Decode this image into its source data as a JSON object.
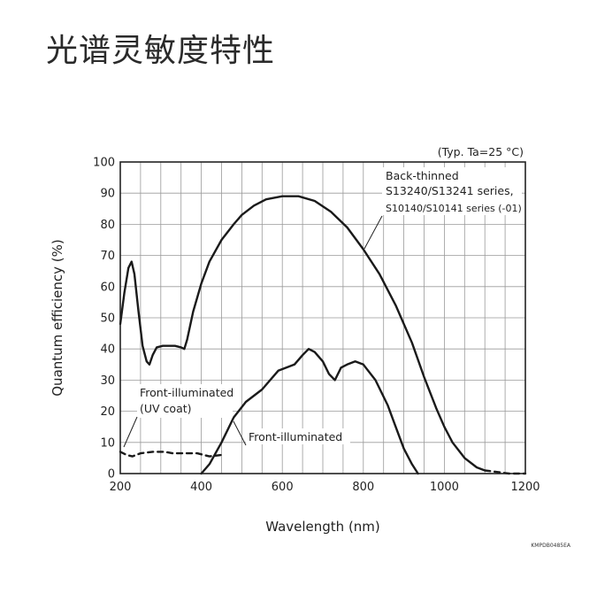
{
  "page": {
    "title": "光谱灵敏度特性",
    "code": "KMPDB0485EA"
  },
  "chart_data": {
    "type": "line",
    "title": "",
    "condition": "(Typ. Ta=25 °C)",
    "xlabel": "Wavelength (nm)",
    "ylabel": "Quantum efficiency (%)",
    "xlim": [
      200,
      1200
    ],
    "ylim": [
      0,
      100
    ],
    "xticks": [
      200,
      400,
      600,
      800,
      1000,
      1200
    ],
    "yticks": [
      0,
      10,
      20,
      30,
      40,
      50,
      60,
      70,
      80,
      90,
      100
    ],
    "grid": true,
    "series": [
      {
        "name": "Back-thinned S13240/S13241 series, S10140/S10141 series (-01)",
        "label_lines": [
          "Back-thinned",
          "S13240/S13241 series,",
          "S10140/S10141 series (-01)"
        ],
        "style": "solid",
        "points": [
          [
            200,
            48
          ],
          [
            210,
            58
          ],
          [
            220,
            66
          ],
          [
            228,
            68
          ],
          [
            235,
            64
          ],
          [
            245,
            52
          ],
          [
            255,
            41
          ],
          [
            265,
            36
          ],
          [
            272,
            35
          ],
          [
            280,
            38
          ],
          [
            290,
            40.5
          ],
          [
            305,
            41
          ],
          [
            320,
            41
          ],
          [
            335,
            41
          ],
          [
            350,
            40.5
          ],
          [
            358,
            40
          ],
          [
            365,
            43
          ],
          [
            380,
            52
          ],
          [
            400,
            61
          ],
          [
            420,
            68
          ],
          [
            450,
            75
          ],
          [
            480,
            80
          ],
          [
            500,
            83
          ],
          [
            530,
            86
          ],
          [
            560,
            88
          ],
          [
            600,
            89
          ],
          [
            640,
            89
          ],
          [
            680,
            87.5
          ],
          [
            720,
            84
          ],
          [
            760,
            79
          ],
          [
            800,
            72
          ],
          [
            840,
            64
          ],
          [
            880,
            54
          ],
          [
            920,
            42
          ],
          [
            950,
            31
          ],
          [
            980,
            21
          ],
          [
            1000,
            15
          ],
          [
            1020,
            10
          ],
          [
            1050,
            5
          ],
          [
            1080,
            2
          ],
          [
            1100,
            1
          ]
        ]
      },
      {
        "name": "Front-illuminated (UV coat)",
        "label_lines": [
          "Front-illuminated",
          "(UV coat)"
        ],
        "style": "dashed",
        "points": [
          [
            200,
            7
          ],
          [
            215,
            6
          ],
          [
            230,
            5.5
          ],
          [
            250,
            6.5
          ],
          [
            280,
            7
          ],
          [
            310,
            7
          ],
          [
            330,
            6.5
          ],
          [
            360,
            6.5
          ],
          [
            390,
            6.5
          ],
          [
            420,
            5.5
          ],
          [
            450,
            6
          ]
        ]
      },
      {
        "name": "Front-illuminated",
        "label_lines": [
          "Front-illuminated"
        ],
        "style": "solid",
        "points": [
          [
            400,
            0
          ],
          [
            420,
            3
          ],
          [
            450,
            10
          ],
          [
            480,
            18
          ],
          [
            510,
            23
          ],
          [
            550,
            27
          ],
          [
            590,
            33
          ],
          [
            610,
            34
          ],
          [
            630,
            35
          ],
          [
            650,
            38
          ],
          [
            665,
            40
          ],
          [
            680,
            39
          ],
          [
            700,
            36
          ],
          [
            715,
            32
          ],
          [
            730,
            30
          ],
          [
            745,
            34
          ],
          [
            760,
            35
          ],
          [
            780,
            36
          ],
          [
            800,
            35
          ],
          [
            830,
            30
          ],
          [
            860,
            22
          ],
          [
            880,
            15
          ],
          [
            900,
            8
          ],
          [
            920,
            3
          ],
          [
            935,
            0
          ]
        ]
      },
      {
        "name": "",
        "label_lines": [],
        "style": "dashed",
        "points": [
          [
            1100,
            1
          ],
          [
            1130,
            0.5
          ],
          [
            1160,
            0
          ],
          [
            1200,
            0
          ]
        ]
      }
    ]
  }
}
